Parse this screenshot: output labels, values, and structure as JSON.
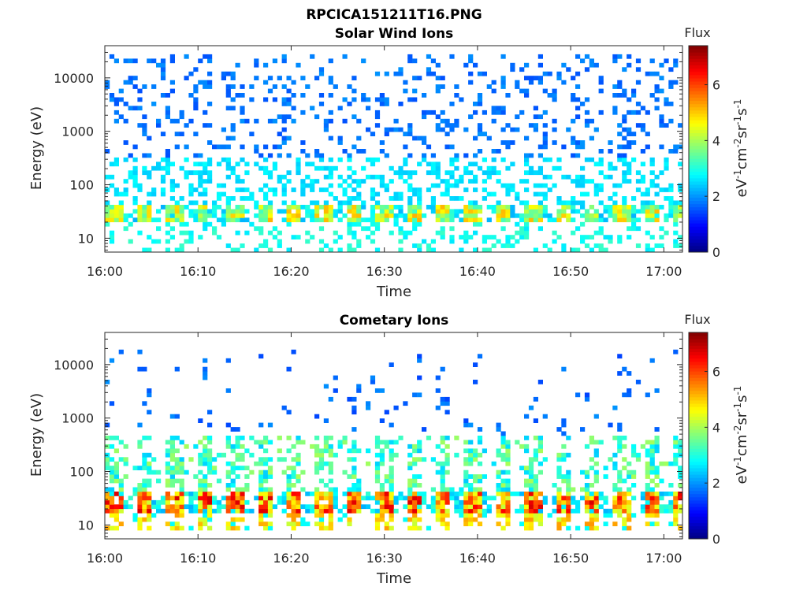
{
  "figure": {
    "file_title": "RPCICA151211T16.PNG"
  },
  "chart_data": [
    {
      "type": "heatmap",
      "title": "Solar Wind Ions",
      "xlabel": "Time",
      "ylabel": "Energy (eV)",
      "x_range": [
        "16:00",
        "17:02"
      ],
      "x_ticks": [
        "16:00",
        "16:10",
        "16:20",
        "16:30",
        "16:40",
        "16:50",
        "17:00"
      ],
      "y_scale": "log",
      "y_range": [
        5.5,
        40000
      ],
      "y_ticks": [
        10,
        100,
        1000,
        10000
      ],
      "y_tick_labels": [
        "10",
        "100",
        "1000",
        "10000"
      ],
      "colorbar": {
        "title": "Flux",
        "label": "eV-1cm-2sr-1s-1",
        "range": [
          0,
          7.4
        ],
        "ticks": [
          0,
          2,
          4,
          6
        ],
        "tick_labels": [
          "0",
          "2",
          "4",
          "6"
        ],
        "colormap": "jet"
      },
      "features": {
        "band_energy_eV": [
          20,
          40
        ],
        "band_peak_flux": 5.2,
        "band_period_min": 3.2,
        "background_flux": [
          1.5,
          2.8
        ],
        "background_energy_eV": [
          10,
          30000
        ]
      }
    },
    {
      "type": "heatmap",
      "title": "Cometary Ions",
      "xlabel": "Time",
      "ylabel": "Energy (eV)",
      "x_range": [
        "16:00",
        "17:02"
      ],
      "x_ticks": [
        "16:00",
        "16:10",
        "16:20",
        "16:30",
        "16:40",
        "16:50",
        "17:00"
      ],
      "y_scale": "log",
      "y_range": [
        5.5,
        40000
      ],
      "y_ticks": [
        10,
        100,
        1000,
        10000
      ],
      "y_tick_labels": [
        "10",
        "100",
        "1000",
        "10000"
      ],
      "colorbar": {
        "title": "Flux",
        "label": "eV-1cm-2sr-1s-1",
        "range": [
          0,
          7.4
        ],
        "ticks": [
          0,
          2,
          4,
          6
        ],
        "tick_labels": [
          "0",
          "2",
          "4",
          "6"
        ],
        "colormap": "jet"
      },
      "features": {
        "band_energy_eV": [
          18,
          40
        ],
        "band_peak_flux": 6.8,
        "band_period_min": 3.2,
        "plume_energy_eV": [
          40,
          500
        ],
        "sparse_energy_eV": [
          500,
          20000
        ]
      }
    }
  ]
}
